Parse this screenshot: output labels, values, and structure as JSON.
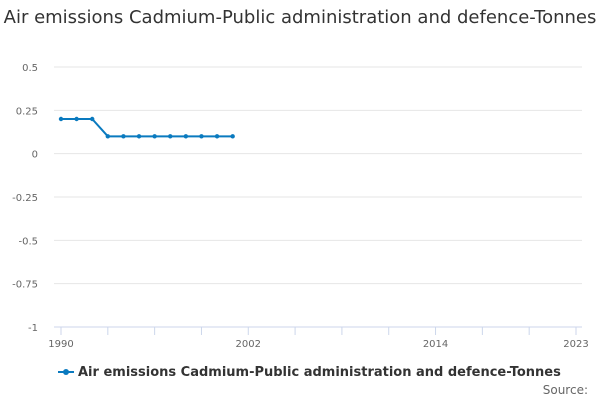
{
  "chart_data": {
    "type": "line",
    "title": "Air emissions Cadmium-Public administration and defence-Tonnes",
    "xlabel": "",
    "ylabel": "",
    "xlim": [
      1990,
      2023
    ],
    "ylim": [
      -1,
      0.5
    ],
    "y_ticks": [
      0.5,
      0.25,
      0,
      -0.25,
      -0.5,
      -0.75,
      -1
    ],
    "y_tick_labels": [
      "0.5",
      "0.25",
      "0",
      "-0.25",
      "-0.5",
      "-0.75",
      "-1"
    ],
    "x_tick_labels": [
      {
        "year": 1990,
        "label": "1990"
      },
      {
        "year": 2002,
        "label": "2002"
      },
      {
        "year": 2014,
        "label": "2014"
      },
      {
        "year": 2023,
        "label": "2023"
      }
    ],
    "x_minor_ticks": [
      1990,
      1993,
      1996,
      1999,
      2002,
      2005,
      2008,
      2011,
      2014,
      2017,
      2020,
      2023
    ],
    "series": [
      {
        "name": "Air emissions Cadmium-Public administration and defence-Tonnes",
        "color": "#0a7abf",
        "x": [
          1990,
          1991,
          1992,
          1993,
          1994,
          1995,
          1996,
          1997,
          1998,
          1999,
          2000,
          2001
        ],
        "values": [
          0.2,
          0.2,
          0.2,
          0.1,
          0.1,
          0.1,
          0.1,
          0.1,
          0.1,
          0.1,
          0.1,
          0.1
        ]
      }
    ],
    "legend_position": "bottom-left",
    "grid": true
  },
  "source_label": "Source:"
}
